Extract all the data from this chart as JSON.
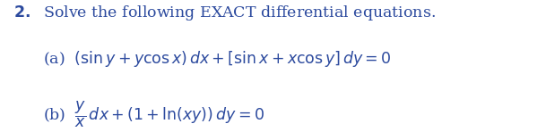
{
  "title": "2.  Solve the following EXACT differential equations.",
  "line_a_label": "(a)",
  "line_a_eq": "$(\\sin y + y\\cos x)\\,dx + [\\sin x + x\\cos y]\\,dy = 0$",
  "line_b_label": "(b)",
  "line_b_eq": "$\\dfrac{y}{x}\\,dx + (1 + \\ln(xy))\\,dy = 0$",
  "bg_color": "#ffffff",
  "text_color": "#2c4a9e",
  "font_size_title": 12.5,
  "font_size_eq": 12.5,
  "fig_width": 6.09,
  "fig_height": 1.48
}
